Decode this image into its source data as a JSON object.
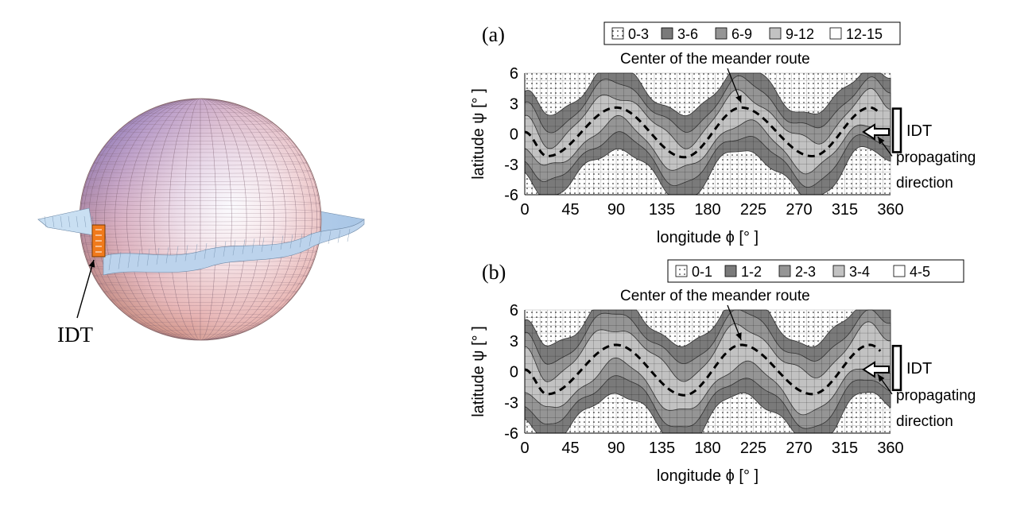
{
  "sphere": {
    "idt_label": "IDT"
  },
  "chart_data": [
    {
      "type": "heatmap",
      "panel_label": "(a)",
      "xlabel": "longitude ϕ [° ]",
      "ylabel": "latitude ψ [° ]",
      "xlim": [
        0,
        360
      ],
      "ylim": [
        -6,
        6
      ],
      "xticks": [
        "0",
        "45",
        "90",
        "135",
        "180",
        "225",
        "270",
        "315",
        "360"
      ],
      "yticks": [
        "6",
        "3",
        "0",
        "-3",
        "-6"
      ],
      "grid": true,
      "legend_position": "top",
      "legend": [
        {
          "label": "0-3",
          "fill": "#ffffff",
          "dotted": true
        },
        {
          "label": "3-6",
          "fill": "#7a7a7a",
          "dotted": false
        },
        {
          "label": "6-9",
          "fill": "#959595",
          "dotted": false
        },
        {
          "label": "9-12",
          "fill": "#c2c2c2",
          "dotted": false
        },
        {
          "label": "12-15",
          "fill": "#ffffff",
          "dotted": false
        }
      ],
      "route": {
        "x": [
          0,
          22,
          90,
          157,
          213,
          283,
          340,
          360
        ],
        "y": [
          0.2,
          -2.2,
          2.6,
          -2.3,
          2.6,
          -2.2,
          2.6,
          1.4
        ]
      },
      "bands": [
        {
          "fill": "#7a7a7a",
          "half_width": 4.0
        },
        {
          "fill": "#959595",
          "half_width": 2.6
        },
        {
          "fill": "#c2c2c2",
          "half_width": 1.3
        }
      ],
      "annotations": {
        "route": "Center of the meander route",
        "idt": "IDT",
        "direction_line1": "propagating",
        "direction_line2": "direction"
      }
    },
    {
      "type": "heatmap",
      "panel_label": "(b)",
      "xlabel": "longitude ϕ [° ]",
      "ylabel": "latitude ψ [° ]",
      "xlim": [
        0,
        360
      ],
      "ylim": [
        -6,
        6
      ],
      "xticks": [
        "0",
        "45",
        "90",
        "135",
        "180",
        "225",
        "270",
        "315",
        "360"
      ],
      "yticks": [
        "6",
        "3",
        "0",
        "-3",
        "-6"
      ],
      "grid": true,
      "legend_position": "top",
      "legend": [
        {
          "label": "0-1",
          "fill": "#ffffff",
          "dotted": true
        },
        {
          "label": "1-2",
          "fill": "#7a7a7a",
          "dotted": false
        },
        {
          "label": "2-3",
          "fill": "#959595",
          "dotted": false
        },
        {
          "label": "3-4",
          "fill": "#c2c2c2",
          "dotted": false
        },
        {
          "label": "4-5",
          "fill": "#ffffff",
          "dotted": false
        }
      ],
      "route": {
        "x": [
          0,
          22,
          90,
          157,
          213,
          283,
          340,
          360
        ],
        "y": [
          0.2,
          -2.2,
          2.6,
          -2.3,
          2.6,
          -2.2,
          2.6,
          1.4
        ]
      },
      "bands": [
        {
          "fill": "#7a7a7a",
          "half_width": 4.6
        },
        {
          "fill": "#959595",
          "half_width": 3.1
        },
        {
          "fill": "#c2c2c2",
          "half_width": 1.7
        }
      ],
      "annotations": {
        "route": "Center of the meander route",
        "idt": "IDT",
        "direction_line1": "propagating",
        "direction_line2": "direction"
      }
    }
  ]
}
